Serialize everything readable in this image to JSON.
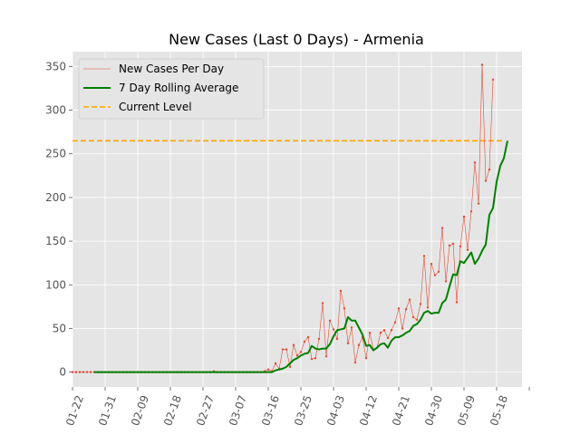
{
  "chart_data": {
    "type": "line",
    "title": "New Cases (Last 0 Days) - Armenia",
    "xlabel": "",
    "ylabel": "",
    "x_start": "2020-01-22",
    "x_tick_labels": [
      "01-22",
      "01-31",
      "02-09",
      "02-18",
      "02-27",
      "03-07",
      "03-16",
      "03-25",
      "04-03",
      "04-12",
      "04-21",
      "04-30",
      "05-09",
      "05-18"
    ],
    "xlim": [
      "2020-01-22",
      "2020-05-25"
    ],
    "y_ticks": [
      0,
      50,
      100,
      150,
      200,
      250,
      300,
      350
    ],
    "ylim": [
      -17,
      367
    ],
    "grid": true,
    "legend_position": "top-left",
    "series": [
      {
        "name": "New Cases Per Day",
        "color": "#e24a33",
        "style": "thin line with point markers",
        "start_date": "2020-01-22",
        "values": [
          0,
          0,
          0,
          0,
          0,
          0,
          0,
          0,
          0,
          0,
          0,
          0,
          0,
          0,
          0,
          0,
          0,
          0,
          0,
          0,
          0,
          0,
          0,
          0,
          0,
          0,
          0,
          0,
          0,
          0,
          0,
          0,
          0,
          0,
          0,
          0,
          0,
          0,
          0,
          1,
          0,
          0,
          0,
          0,
          0,
          0,
          0,
          0,
          0,
          0,
          0,
          0,
          0,
          1,
          3,
          1,
          10,
          4,
          26,
          26,
          6,
          31,
          19,
          23,
          35,
          40,
          15,
          16,
          38,
          79,
          18,
          59,
          49,
          38,
          93,
          73,
          33,
          51,
          11,
          31,
          40,
          16,
          45,
          26,
          28,
          45,
          48,
          39,
          48,
          57,
          73,
          50,
          72,
          83,
          63,
          60,
          78,
          133,
          74,
          124,
          111,
          115,
          165,
          104,
          145,
          147,
          80,
          144,
          178,
          140,
          184,
          240,
          193,
          352,
          219,
          232,
          335
        ],
        "value_precision_note": "values estimated from gridlines"
      },
      {
        "name": "7 Day Rolling Average",
        "color": "#008000",
        "style": "thick line",
        "start_date": "2020-01-28",
        "values": [
          0,
          0,
          0,
          0,
          0,
          0,
          0,
          0,
          0,
          0,
          0,
          0,
          0,
          0,
          0,
          0,
          0,
          0,
          0,
          0,
          0,
          0,
          0,
          0,
          0,
          0,
          0,
          0,
          0,
          0,
          0,
          0,
          0,
          0,
          0,
          0,
          0,
          0,
          0,
          0,
          0,
          0,
          0,
          0,
          0,
          0,
          0,
          0,
          0,
          0,
          2,
          3,
          4,
          6,
          10,
          14,
          16,
          19,
          21,
          22,
          30,
          27,
          26,
          27,
          27,
          32,
          41,
          48,
          49,
          50,
          63,
          59,
          59,
          51,
          43,
          30,
          31,
          25,
          28,
          32,
          33,
          28,
          36,
          40,
          40,
          42,
          45,
          47,
          53,
          55,
          60,
          68,
          70,
          67,
          68,
          68,
          79,
          83,
          98,
          112,
          111,
          127,
          125,
          131,
          137,
          124,
          130,
          139,
          146,
          180,
          188,
          218,
          236,
          245,
          265
        ]
      },
      {
        "name": "Current Level",
        "color": "#ffa500",
        "style": "dashed horizontal line",
        "value": 265,
        "from": "2020-01-22",
        "to": "2020-05-20"
      }
    ]
  }
}
